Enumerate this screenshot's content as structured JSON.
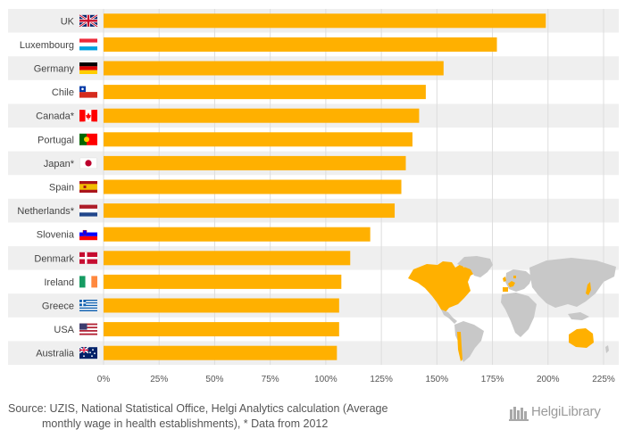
{
  "chart_data": {
    "type": "bar",
    "orientation": "horizontal",
    "categories": [
      "UK",
      "Luxembourg",
      "Germany",
      "Chile",
      "Canada*",
      "Portugal",
      "Japan*",
      "Spain",
      "Netherlands*",
      "Slovenia",
      "Denmark",
      "Ireland",
      "Greece",
      "USA",
      "Australia"
    ],
    "values": [
      199,
      177,
      153,
      145,
      142,
      139,
      136,
      134,
      131,
      120,
      111,
      107,
      106,
      106,
      105
    ],
    "xlim": [
      0,
      225
    ],
    "xticks": [
      0,
      25,
      50,
      75,
      100,
      125,
      150,
      175,
      200,
      225
    ],
    "xtick_labels": [
      "0%",
      "25%",
      "50%",
      "75%",
      "100%",
      "125%",
      "150%",
      "175%",
      "200%",
      "225%"
    ],
    "bar_color": "#FFB000",
    "flags": [
      "uk",
      "luxembourg",
      "germany",
      "chile",
      "canada",
      "portugal",
      "japan",
      "spain",
      "netherlands",
      "slovenia",
      "denmark",
      "ireland",
      "greece",
      "usa",
      "australia"
    ]
  },
  "source": {
    "line1": "Source: UZIS, National Statistical Office, Helgi Analytics calculation (Average",
    "line2": "monthly wage in health establishments), * Data from 2012"
  },
  "brand": {
    "name": "HelgiLibrary"
  },
  "colors": {
    "accent": "#FFB000",
    "band": "#EFEFEF",
    "map_land": "#C8C8C8",
    "map_highlight": "#FFB000"
  }
}
